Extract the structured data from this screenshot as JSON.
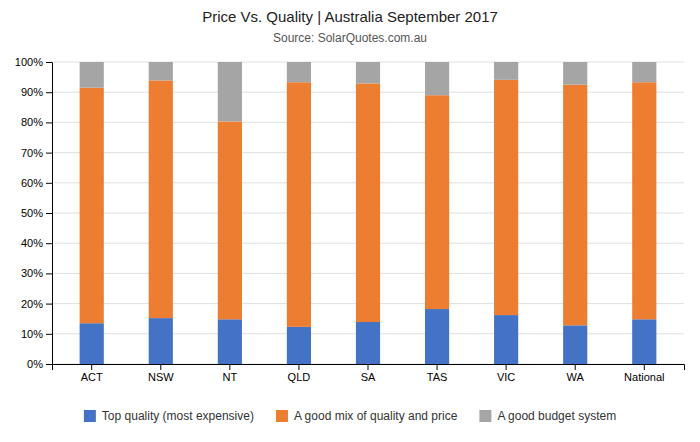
{
  "chart_data": {
    "type": "bar",
    "stacked": true,
    "title": "Price Vs. Quality | Australia September 2017",
    "subtitle": "Source: SolarQuotes.com.au",
    "categories": [
      "ACT",
      "NSW",
      "NT",
      "QLD",
      "SA",
      "TAS",
      "VIC",
      "WA",
      "National"
    ],
    "series": [
      {
        "name": "Top quality (most expensive)",
        "color": "#4472C4",
        "values": [
          13.5,
          15.2,
          14.8,
          12.3,
          13.9,
          18.2,
          16.2,
          12.8,
          14.8
        ]
      },
      {
        "name": "A good mix of quality and price",
        "color": "#ED7D31",
        "values": [
          78.0,
          78.7,
          65.5,
          81.0,
          79.0,
          70.8,
          77.9,
          79.7,
          78.5
        ]
      },
      {
        "name": "A good budget system",
        "color": "#A5A5A5",
        "values": [
          8.5,
          6.1,
          19.7,
          6.7,
          7.1,
          11.0,
          5.9,
          7.5,
          6.7
        ]
      }
    ],
    "ylim": [
      0,
      100
    ],
    "yticks": [
      {
        "value": 0,
        "label": "0%"
      },
      {
        "value": 10,
        "label": "10%"
      },
      {
        "value": 20,
        "label": "20%"
      },
      {
        "value": 30,
        "label": "30%"
      },
      {
        "value": 40,
        "label": "40%"
      },
      {
        "value": 50,
        "label": "50%"
      },
      {
        "value": 60,
        "label": "60%"
      },
      {
        "value": 70,
        "label": "70%"
      },
      {
        "value": 80,
        "label": "80%"
      },
      {
        "value": 90,
        "label": "90%"
      },
      {
        "value": 100,
        "label": "100%"
      }
    ],
    "grid": true,
    "legend": "bottom"
  }
}
